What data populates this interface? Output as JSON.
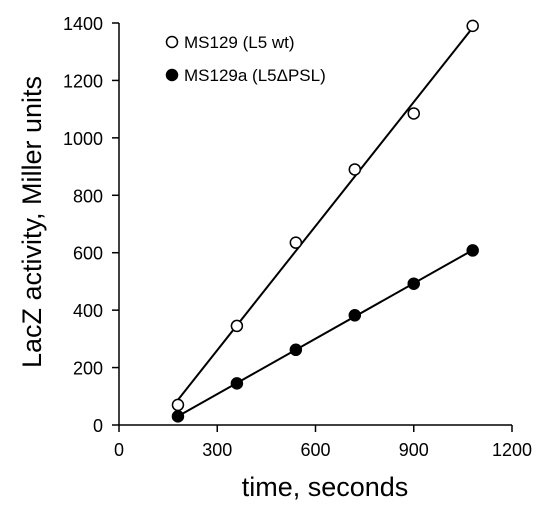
{
  "chart_data": {
    "type": "scatter",
    "title": "",
    "xlabel": "time, seconds",
    "ylabel": "LacZ activity, Miller units",
    "xlim": [
      0,
      1200
    ],
    "ylim": [
      0,
      1400
    ],
    "xticks": [
      0,
      300,
      600,
      900,
      1200
    ],
    "yticks": [
      0,
      200,
      400,
      600,
      800,
      1000,
      1200,
      1400
    ],
    "grid": false,
    "legend_position": "top-left",
    "series": [
      {
        "name": "MS129 (L5 wt)",
        "marker": "open-circle",
        "x": [
          180,
          360,
          540,
          720,
          900,
          1080
        ],
        "y": [
          70,
          345,
          635,
          890,
          1085,
          1390
        ],
        "trendline": "linear"
      },
      {
        "name": "MS129a (L5ΔPSL)",
        "marker": "filled-circle",
        "x": [
          180,
          360,
          540,
          720,
          900,
          1080
        ],
        "y": [
          30,
          145,
          262,
          382,
          492,
          608
        ],
        "trendline": "linear"
      }
    ]
  }
}
